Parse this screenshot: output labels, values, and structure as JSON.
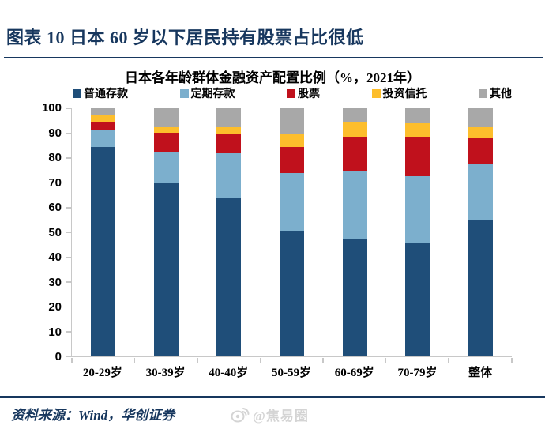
{
  "header": {
    "title": "图表 10  日本 60 岁以下居民持有股票占比很低"
  },
  "chart_data": {
    "type": "bar",
    "stacked": true,
    "title": "日本各年龄群体金融资产配置比例（%，2021年）",
    "categories": [
      "20-29岁",
      "30-39岁",
      "40-40岁",
      "50-59岁",
      "60-69岁",
      "70-79岁",
      "整体"
    ],
    "series": [
      {
        "name": "普通存款",
        "color": "#1F4E79",
        "values": [
          84.5,
          70,
          64,
          50.5,
          47,
          45.5,
          55
        ]
      },
      {
        "name": "定期存款",
        "color": "#7CAFCD",
        "values": [
          7,
          12.5,
          18,
          23.5,
          27.5,
          27,
          22.5
        ]
      },
      {
        "name": "股票",
        "color": "#C0111C",
        "values": [
          3,
          7.5,
          7.5,
          10.5,
          14,
          16,
          10.5
        ]
      },
      {
        "name": "投资信托",
        "color": "#FDBE2C",
        "values": [
          3,
          2.5,
          3,
          5,
          6,
          5.5,
          4.5
        ]
      },
      {
        "name": "其他",
        "color": "#A8A8A8",
        "values": [
          2.5,
          7.5,
          7.5,
          10.5,
          5.5,
          6,
          7.5
        ]
      }
    ],
    "ylabel": "",
    "xlabel": "",
    "ylim": [
      0,
      100
    ],
    "yticks": [
      0,
      10,
      20,
      30,
      40,
      50,
      60,
      70,
      80,
      90,
      100
    ],
    "legend_position": "top",
    "grid": false,
    "axis_color": "#C8C8C8"
  },
  "footer": {
    "source": "资料来源：Wind，华创证券",
    "watermark": "@焦易圈"
  },
  "colors": {
    "accent_navy": "#17375E"
  }
}
